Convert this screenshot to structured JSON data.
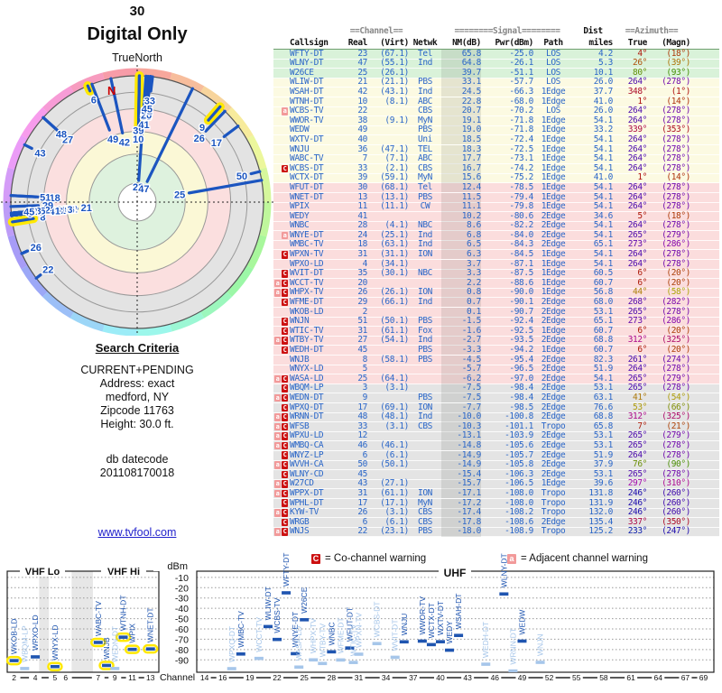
{
  "page": {
    "title_channel": "30",
    "title_mode": "Digital Only",
    "link": "www.tvfool.com"
  },
  "radar": {
    "true_north_label": "TrueNorth",
    "magnetic_label": "N"
  },
  "search": {
    "heading": "Search Criteria",
    "lines": [
      "CURRENT+PENDING",
      "Address: exact",
      "medford, NY",
      "Zipcode 11763",
      "Height: 30.0 ft."
    ],
    "db_label": "db datecode",
    "db_value": "201108170018"
  },
  "legend": {
    "co_badge": "C",
    "co_text": "= Co-channel warning",
    "adj_badge": "a",
    "adj_text": "= Adjacent channel warning"
  },
  "table_header": {
    "channel_group": "==Channel==",
    "signal_group": "========Signal========",
    "dist_group": "Dist",
    "azimuth_group": "==Azimuth==",
    "cols": [
      "Callsign",
      "Real",
      "(Virt)",
      "Netwk",
      "NM(dB)",
      "Pwr(dBm)",
      "Path",
      "miles",
      "True",
      "(Magn)"
    ]
  },
  "bottom_chart": {
    "dbm_label": "dBm",
    "channel_label": "Channel",
    "vhf_lo_label": "VHF Lo",
    "vhf_hi_label": "VHF Hi",
    "uhf_label": "UHF",
    "dbm_ticks": [
      -10,
      -20,
      -30,
      -40,
      -50,
      -60,
      -70,
      -80,
      -90
    ],
    "vhf_ticks": [
      2,
      4,
      5,
      6,
      7,
      9,
      11,
      13
    ],
    "uhf_ticks": [
      14,
      16,
      19,
      22,
      25,
      28,
      31,
      34,
      37,
      40,
      43,
      46,
      49,
      52,
      55,
      58,
      61,
      64,
      67,
      69
    ]
  },
  "colors": {
    "data_blue": "#2a66c8",
    "spoke_blue": "#1b55c0",
    "bar_dark": "#1f55b0",
    "bar_light": "#a6c6ea",
    "warn_co": "#cc1111",
    "warn_adj": "#f29a9a",
    "highlight_yellow": "#ffe800",
    "row_green": "#d9f2d9",
    "row_yellow": "#fcfae2",
    "row_pink": "#fbdddd",
    "row_gray": "#e4e4e4"
  },
  "chart_data": {
    "type": "table",
    "title": "TV signal analysis report (radar azimuth plot, station table, power-by-channel plot)",
    "radar_plot": {
      "angle_field": "az_true",
      "radius_field": "nm_db",
      "label_field": "real",
      "north": "TrueNorth"
    },
    "power_plot": {
      "x_field": "real",
      "y_field": "pwr_dbm",
      "ylim": [
        -10,
        -90
      ],
      "bands": [
        "VHF Lo",
        "VHF Hi",
        "UHF"
      ]
    },
    "stations": [
      {
        "callsign": "WFTY-DT",
        "real": 23,
        "virt": "67.1",
        "net": "Tel",
        "nm_db": 65.8,
        "pwr_dbm": -25.0,
        "path": "LOS",
        "miles": 4.2,
        "az_true": 4,
        "az_magn": 18,
        "warn": "",
        "quality": "green"
      },
      {
        "callsign": "WLNY-DT",
        "real": 47,
        "virt": "55.1",
        "net": "Ind",
        "nm_db": 64.8,
        "pwr_dbm": -26.1,
        "path": "LOS",
        "miles": 5.3,
        "az_true": 26,
        "az_magn": 39,
        "warn": "",
        "quality": "green"
      },
      {
        "callsign": "W26CE",
        "real": 25,
        "virt": "26.1",
        "net": "",
        "nm_db": 39.7,
        "pwr_dbm": -51.1,
        "path": "LOS",
        "miles": 10.1,
        "az_true": 80,
        "az_magn": 93,
        "warn": "",
        "quality": "green"
      },
      {
        "callsign": "WLIW-DT",
        "real": 21,
        "virt": "21.1",
        "net": "PBS",
        "nm_db": 33.1,
        "pwr_dbm": -57.7,
        "path": "LOS",
        "miles": 26.0,
        "az_true": 264,
        "az_magn": 278,
        "warn": "",
        "quality": "yellow"
      },
      {
        "callsign": "WSAH-DT",
        "real": 42,
        "virt": "43.1",
        "net": "Ind",
        "nm_db": 24.5,
        "pwr_dbm": -66.3,
        "path": "1Edge",
        "miles": 37.7,
        "az_true": 348,
        "az_magn": 1,
        "warn": "",
        "quality": "yellow"
      },
      {
        "callsign": "WTNH-DT",
        "real": 10,
        "virt": "8.1",
        "net": "ABC",
        "nm_db": 22.8,
        "pwr_dbm": -68.0,
        "path": "1Edge",
        "miles": 41.0,
        "az_true": 1,
        "az_magn": 14,
        "warn": "",
        "quality": "yellow",
        "ring": true,
        "radar_ring": true
      },
      {
        "callsign": "WCBS-TV",
        "real": 22,
        "virt": "",
        "net": "CBS",
        "nm_db": 20.7,
        "pwr_dbm": -70.2,
        "path": "LOS",
        "miles": 26.0,
        "az_true": 264,
        "az_magn": 278,
        "warn": "a",
        "quality": "yellow"
      },
      {
        "callsign": "WWOR-TV",
        "real": 38,
        "virt": "9.1",
        "net": "MyN",
        "nm_db": 19.1,
        "pwr_dbm": -71.8,
        "path": "1Edge",
        "miles": 54.1,
        "az_true": 264,
        "az_magn": 278,
        "warn": "",
        "quality": "yellow"
      },
      {
        "callsign": "WEDW",
        "real": 49,
        "virt": "",
        "net": "PBS",
        "nm_db": 19.0,
        "pwr_dbm": -71.8,
        "path": "1Edge",
        "miles": 33.2,
        "az_true": 339,
        "az_magn": 353,
        "warn": "",
        "quality": "yellow"
      },
      {
        "callsign": "WXTV-DT",
        "real": 40,
        "virt": "",
        "net": "Uni",
        "nm_db": 18.5,
        "pwr_dbm": -72.4,
        "path": "1Edge",
        "miles": 54.1,
        "az_true": 264,
        "az_magn": 278,
        "warn": "",
        "quality": "yellow"
      },
      {
        "callsign": "WNJU",
        "real": 36,
        "virt": "47.1",
        "net": "TEL",
        "nm_db": 18.3,
        "pwr_dbm": -72.5,
        "path": "1Edge",
        "miles": 54.1,
        "az_true": 264,
        "az_magn": 278,
        "warn": "",
        "quality": "yellow"
      },
      {
        "callsign": "WABC-TV",
        "real": 7,
        "virt": "7.1",
        "net": "ABC",
        "nm_db": 17.7,
        "pwr_dbm": -73.1,
        "path": "1Edge",
        "miles": 54.1,
        "az_true": 264,
        "az_magn": 278,
        "warn": "",
        "quality": "yellow",
        "ring": true
      },
      {
        "callsign": "WCBS-DT",
        "real": 33,
        "virt": "2.1",
        "net": "CBS",
        "nm_db": 16.7,
        "pwr_dbm": -74.2,
        "path": "1Edge",
        "miles": 54.1,
        "az_true": 264,
        "az_magn": 278,
        "warn": "C",
        "quality": "yellow"
      },
      {
        "callsign": "WCTX-DT",
        "real": 39,
        "virt": "59.1",
        "net": "MyN",
        "nm_db": 15.6,
        "pwr_dbm": -75.2,
        "path": "1Edge",
        "miles": 41.0,
        "az_true": 1,
        "az_magn": 14,
        "warn": "",
        "quality": "yellow"
      },
      {
        "callsign": "WFUT-DT",
        "real": 30,
        "virt": "68.1",
        "net": "Tel",
        "nm_db": 12.4,
        "pwr_dbm": -78.5,
        "path": "1Edge",
        "miles": 54.1,
        "az_true": 264,
        "az_magn": 278,
        "warn": "",
        "quality": "pink"
      },
      {
        "callsign": "WNET-DT",
        "real": 13,
        "virt": "13.1",
        "net": "PBS",
        "nm_db": 11.5,
        "pwr_dbm": -79.4,
        "path": "1Edge",
        "miles": 54.1,
        "az_true": 264,
        "az_magn": 278,
        "warn": "",
        "quality": "pink",
        "ring": true
      },
      {
        "callsign": "WPIX",
        "real": 11,
        "virt": "11.1",
        "net": "CW",
        "nm_db": 11.1,
        "pwr_dbm": -79.8,
        "path": "1Edge",
        "miles": 54.1,
        "az_true": 264,
        "az_magn": 278,
        "warn": "",
        "quality": "pink",
        "ring": true
      },
      {
        "callsign": "WEDY",
        "real": 41,
        "virt": "",
        "net": "",
        "nm_db": 10.2,
        "pwr_dbm": -80.6,
        "path": "2Edge",
        "miles": 34.6,
        "az_true": 5,
        "az_magn": 18,
        "warn": "",
        "quality": "pink"
      },
      {
        "callsign": "WNBC",
        "real": 28,
        "virt": "4.1",
        "net": "NBC",
        "nm_db": 8.6,
        "pwr_dbm": -82.2,
        "path": "2Edge",
        "miles": 54.1,
        "az_true": 264,
        "az_magn": 278,
        "warn": "",
        "quality": "pink"
      },
      {
        "callsign": "WNYE-DT",
        "real": 24,
        "virt": "25.1",
        "net": "Ind",
        "nm_db": 6.8,
        "pwr_dbm": -84.0,
        "path": "2Edge",
        "miles": 54.1,
        "az_true": 265,
        "az_magn": 279,
        "warn": "a",
        "quality": "pink"
      },
      {
        "callsign": "WMBC-TV",
        "real": 18,
        "virt": "63.1",
        "net": "Ind",
        "nm_db": 6.5,
        "pwr_dbm": -84.3,
        "path": "2Edge",
        "miles": 65.1,
        "az_true": 273,
        "az_magn": 286,
        "warn": "",
        "quality": "pink"
      },
      {
        "callsign": "WPXN-TV",
        "real": 31,
        "virt": "31.1",
        "net": "ION",
        "nm_db": 6.3,
        "pwr_dbm": -84.5,
        "path": "1Edge",
        "miles": 54.1,
        "az_true": 264,
        "az_magn": 278,
        "warn": "C",
        "quality": "pink"
      },
      {
        "callsign": "WPXO-LD",
        "real": 4,
        "virt": "34.1",
        "net": "",
        "nm_db": 3.7,
        "pwr_dbm": -87.1,
        "path": "1Edge",
        "miles": 54.1,
        "az_true": 264,
        "az_magn": 278,
        "warn": "",
        "quality": "pink"
      },
      {
        "callsign": "WVIT-DT",
        "real": 35,
        "virt": "30.1",
        "net": "NBC",
        "nm_db": 3.3,
        "pwr_dbm": -87.5,
        "path": "1Edge",
        "miles": 60.5,
        "az_true": 6,
        "az_magn": 20,
        "warn": "C",
        "quality": "pink"
      },
      {
        "callsign": "WCCT-TV",
        "real": 20,
        "virt": "",
        "net": "",
        "nm_db": 2.2,
        "pwr_dbm": -88.6,
        "path": "1Edge",
        "miles": 60.7,
        "az_true": 6,
        "az_magn": 20,
        "warn": "aC",
        "quality": "pink"
      },
      {
        "callsign": "WHPX-TV",
        "real": 26,
        "virt": "26.1",
        "net": "ION",
        "nm_db": 0.8,
        "pwr_dbm": -90.0,
        "path": "1Edge",
        "miles": 56.8,
        "az_true": 44,
        "az_magn": 58,
        "warn": "aC",
        "quality": "pink"
      },
      {
        "callsign": "WFME-DT",
        "real": 29,
        "virt": "66.1",
        "net": "Ind",
        "nm_db": 0.7,
        "pwr_dbm": -90.1,
        "path": "2Edge",
        "miles": 68.0,
        "az_true": 268,
        "az_magn": 282,
        "warn": "C",
        "quality": "pink"
      },
      {
        "callsign": "WKOB-LD",
        "real": 2,
        "virt": "",
        "net": "",
        "nm_db": 0.1,
        "pwr_dbm": -90.7,
        "path": "2Edge",
        "miles": 53.1,
        "az_true": 265,
        "az_magn": 278,
        "warn": "",
        "quality": "pink",
        "ring": true
      },
      {
        "callsign": "WNJN",
        "real": 51,
        "virt": "50.1",
        "net": "PBS",
        "nm_db": -1.5,
        "pwr_dbm": -92.4,
        "path": "2Edge",
        "miles": 65.1,
        "az_true": 273,
        "az_magn": 286,
        "warn": "C",
        "quality": "pink"
      },
      {
        "callsign": "WTIC-TV",
        "real": 31,
        "virt": "61.1",
        "net": "Fox",
        "nm_db": -1.6,
        "pwr_dbm": -92.5,
        "path": "1Edge",
        "miles": 60.7,
        "az_true": 6,
        "az_magn": 20,
        "warn": "C",
        "quality": "pink"
      },
      {
        "callsign": "WTBY-TV",
        "real": 27,
        "virt": "54.1",
        "net": "Ind",
        "nm_db": -2.7,
        "pwr_dbm": -93.5,
        "path": "2Edge",
        "miles": 68.8,
        "az_true": 312,
        "az_magn": 325,
        "warn": "aC",
        "quality": "pink"
      },
      {
        "callsign": "WEDH-DT",
        "real": 45,
        "virt": "",
        "net": "PBS",
        "nm_db": -3.3,
        "pwr_dbm": -94.2,
        "path": "1Edge",
        "miles": 60.7,
        "az_true": 6,
        "az_magn": 20,
        "warn": "C",
        "quality": "pink"
      },
      {
        "callsign": "WNJB",
        "real": 8,
        "virt": "58.1",
        "net": "PBS",
        "nm_db": -4.5,
        "pwr_dbm": -95.4,
        "path": "2Edge",
        "miles": 82.3,
        "az_true": 261,
        "az_magn": 274,
        "warn": "",
        "quality": "pink",
        "ring": true,
        "radar_ring": true
      },
      {
        "callsign": "WNYX-LD",
        "real": 5,
        "virt": "",
        "net": "",
        "nm_db": -5.7,
        "pwr_dbm": -96.5,
        "path": "2Edge",
        "miles": 51.9,
        "az_true": 264,
        "az_magn": 278,
        "warn": "",
        "quality": "pink",
        "ring": true
      },
      {
        "callsign": "WASA-LD",
        "real": 25,
        "virt": "64.1",
        "net": "",
        "nm_db": -6.2,
        "pwr_dbm": -97.0,
        "path": "2Edge",
        "miles": 54.1,
        "az_true": 265,
        "az_magn": 279,
        "warn": "aC",
        "quality": "pink"
      },
      {
        "callsign": "WBQM-LP",
        "real": 3,
        "virt": "3.1",
        "net": "",
        "nm_db": -7.5,
        "pwr_dbm": -98.4,
        "path": "2Edge",
        "miles": 53.1,
        "az_true": 265,
        "az_magn": 278,
        "warn": "C",
        "quality": "gray"
      },
      {
        "callsign": "WEDN-DT",
        "real": 9,
        "virt": "",
        "net": "PBS",
        "nm_db": -7.5,
        "pwr_dbm": -98.4,
        "path": "2Edge",
        "miles": 63.1,
        "az_true": 41,
        "az_magn": 54,
        "warn": "aC",
        "quality": "gray",
        "radar_ring": true
      },
      {
        "callsign": "WPXQ-DT",
        "real": 17,
        "virt": "69.1",
        "net": "ION",
        "nm_db": -7.7,
        "pwr_dbm": -98.5,
        "path": "2Edge",
        "miles": 76.6,
        "az_true": 53,
        "az_magn": 66,
        "warn": "C",
        "quality": "gray"
      },
      {
        "callsign": "WRNN-DT",
        "real": 48,
        "virt": "48.1",
        "net": "Ind",
        "nm_db": -10.0,
        "pwr_dbm": -100.8,
        "path": "2Edge",
        "miles": 68.8,
        "az_true": 312,
        "az_magn": 325,
        "warn": "aC",
        "quality": "gray"
      },
      {
        "callsign": "WFSB",
        "real": 33,
        "virt": "3.1",
        "net": "CBS",
        "nm_db": -10.3,
        "pwr_dbm": -101.1,
        "path": "Tropo",
        "miles": 65.8,
        "az_true": 7,
        "az_magn": 21,
        "warn": "aC",
        "quality": "gray"
      },
      {
        "callsign": "WPXU-LD",
        "real": 12,
        "virt": "",
        "net": "",
        "nm_db": -13.1,
        "pwr_dbm": -103.9,
        "path": "2Edge",
        "miles": 53.1,
        "az_true": 265,
        "az_magn": 279,
        "warn": "aC",
        "quality": "gray"
      },
      {
        "callsign": "WMBQ-CA",
        "real": 46,
        "virt": "46.1",
        "net": "",
        "nm_db": -14.8,
        "pwr_dbm": -105.6,
        "path": "2Edge",
        "miles": 53.1,
        "az_true": 265,
        "az_magn": 278,
        "warn": "aC",
        "quality": "gray"
      },
      {
        "callsign": "WNYZ-LP",
        "real": 6,
        "virt": "6.1",
        "net": "",
        "nm_db": -14.9,
        "pwr_dbm": -105.7,
        "path": "2Edge",
        "miles": 51.9,
        "az_true": 264,
        "az_magn": 278,
        "warn": "C",
        "quality": "gray"
      },
      {
        "callsign": "WVVH-CA",
        "real": 50,
        "virt": "50.1",
        "net": "",
        "nm_db": -14.9,
        "pwr_dbm": -105.8,
        "path": "2Edge",
        "miles": 37.9,
        "az_true": 76,
        "az_magn": 90,
        "warn": "aC",
        "quality": "gray"
      },
      {
        "callsign": "WLNY-CD",
        "real": 45,
        "virt": "",
        "net": "",
        "nm_db": -15.4,
        "pwr_dbm": -106.3,
        "path": "2Edge",
        "miles": 53.1,
        "az_true": 265,
        "az_magn": 278,
        "warn": "C",
        "quality": "gray"
      },
      {
        "callsign": "W27CD",
        "real": 43,
        "virt": "27.1",
        "net": "",
        "nm_db": -15.7,
        "pwr_dbm": -106.5,
        "path": "1Edge",
        "miles": 39.6,
        "az_true": 297,
        "az_magn": 310,
        "warn": "aC",
        "quality": "gray"
      },
      {
        "callsign": "WPPX-DT",
        "real": 31,
        "virt": "61.1",
        "net": "ION",
        "nm_db": -17.1,
        "pwr_dbm": -108.0,
        "path": "Tropo",
        "miles": 131.8,
        "az_true": 246,
        "az_magn": 260,
        "warn": "aC",
        "quality": "gray"
      },
      {
        "callsign": "WPHL-DT",
        "real": 17,
        "virt": "17.1",
        "net": "MyN",
        "nm_db": -17.2,
        "pwr_dbm": -108.0,
        "path": "Tropo",
        "miles": 131.9,
        "az_true": 246,
        "az_magn": 260,
        "warn": "C",
        "quality": "gray"
      },
      {
        "callsign": "KYW-TV",
        "real": 26,
        "virt": "3.1",
        "net": "CBS",
        "nm_db": -17.4,
        "pwr_dbm": -108.2,
        "path": "Tropo",
        "miles": 132.0,
        "az_true": 246,
        "az_magn": 260,
        "warn": "aC",
        "quality": "gray"
      },
      {
        "callsign": "WRGB",
        "real": 6,
        "virt": "6.1",
        "net": "CBS",
        "nm_db": -17.8,
        "pwr_dbm": -108.6,
        "path": "2Edge",
        "miles": 135.4,
        "az_true": 337,
        "az_magn": 350,
        "warn": "C",
        "quality": "gray",
        "radar_ring": true
      },
      {
        "callsign": "WNJS",
        "real": 22,
        "virt": "23.1",
        "net": "PBS",
        "nm_db": -18.0,
        "pwr_dbm": -108.9,
        "path": "Tropo",
        "miles": 125.2,
        "az_true": 233,
        "az_magn": 247,
        "warn": "aC",
        "quality": "gray"
      }
    ]
  }
}
